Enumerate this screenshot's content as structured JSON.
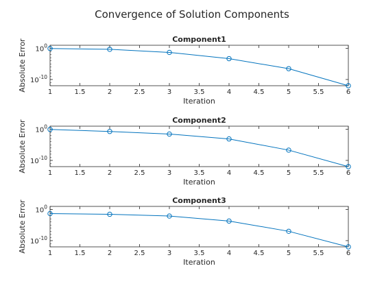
{
  "figure": {
    "title": "Convergence of Solution Components"
  },
  "colors": {
    "line": "#0072BD",
    "axis": "#262626",
    "background": "#ffffff"
  },
  "chart_data": [
    {
      "type": "line",
      "title": "Component1",
      "xlabel": "Iteration",
      "ylabel": "Absolute Error",
      "xlim": [
        1,
        6
      ],
      "ylim": [
        1e-12,
        10
      ],
      "yscale": "log",
      "grid": false,
      "marker": "circle",
      "xticks": [
        1,
        1.5,
        2,
        2.5,
        3,
        3.5,
        4,
        4.5,
        5,
        5.5,
        6
      ],
      "xtick_labels": [
        "1",
        "1.5",
        "2",
        "2.5",
        "3",
        "3.5",
        "4",
        "4.5",
        "5",
        "5.5",
        "6"
      ],
      "ytick_labels": [
        {
          "value": 1,
          "base": "10",
          "exp": "0"
        },
        {
          "value": 1e-10,
          "base": "10",
          "exp": "-10"
        }
      ],
      "x": [
        1,
        2,
        3,
        4,
        5,
        6
      ],
      "y": [
        0.9,
        0.5,
        0.05,
        0.0005,
        3e-07,
        1e-12
      ]
    },
    {
      "type": "line",
      "title": "Component2",
      "xlabel": "Iteration",
      "ylabel": "Absolute Error",
      "xlim": [
        1,
        6
      ],
      "ylim": [
        1e-12,
        10
      ],
      "yscale": "log",
      "grid": false,
      "marker": "circle",
      "xticks": [
        1,
        1.5,
        2,
        2.5,
        3,
        3.5,
        4,
        4.5,
        5,
        5.5,
        6
      ],
      "xtick_labels": [
        "1",
        "1.5",
        "2",
        "2.5",
        "3",
        "3.5",
        "4",
        "4.5",
        "5",
        "5.5",
        "6"
      ],
      "ytick_labels": [
        {
          "value": 1,
          "base": "10",
          "exp": "0"
        },
        {
          "value": 1e-10,
          "base": "10",
          "exp": "-10"
        }
      ],
      "x": [
        1,
        2,
        3,
        4,
        5,
        6
      ],
      "y": [
        0.9,
        0.2,
        0.03,
        0.0008,
        2e-07,
        1e-12
      ]
    },
    {
      "type": "line",
      "title": "Component3",
      "xlabel": "Iteration",
      "ylabel": "Absolute Error",
      "xlim": [
        1,
        6
      ],
      "ylim": [
        1e-12,
        10
      ],
      "yscale": "log",
      "grid": false,
      "marker": "circle",
      "xticks": [
        1,
        1.5,
        2,
        2.5,
        3,
        3.5,
        4,
        4.5,
        5,
        5.5,
        6
      ],
      "xtick_labels": [
        "1",
        "1.5",
        "2",
        "2.5",
        "3",
        "3.5",
        "4",
        "4.5",
        "5",
        "5.5",
        "6"
      ],
      "ytick_labels": [
        {
          "value": 1,
          "base": "10",
          "exp": "0"
        },
        {
          "value": 1e-10,
          "base": "10",
          "exp": "-10"
        }
      ],
      "x": [
        1,
        2,
        3,
        4,
        5,
        6
      ],
      "y": [
        0.05,
        0.03,
        0.008,
        0.0002,
        1e-07,
        1e-12
      ]
    }
  ]
}
